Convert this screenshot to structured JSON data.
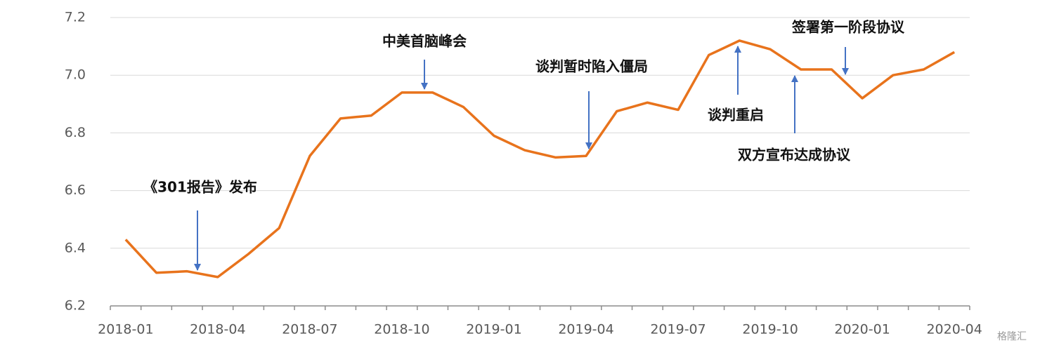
{
  "chart_data": {
    "type": "line",
    "categories": [
      "2018-01",
      null,
      null,
      "2018-04",
      null,
      null,
      "2018-07",
      null,
      null,
      "2018-10",
      null,
      null,
      "2019-01",
      null,
      null,
      "2019-04",
      null,
      null,
      "2019-07",
      null,
      null,
      "2019-10",
      null,
      null,
      "2020-01",
      null,
      null,
      "2020-04"
    ],
    "values": [
      6.43,
      6.315,
      6.32,
      6.3,
      6.38,
      6.47,
      6.72,
      6.85,
      6.86,
      6.94,
      6.94,
      6.89,
      6.79,
      6.74,
      6.715,
      6.72,
      6.875,
      6.905,
      6.88,
      7.07,
      7.12,
      7.09,
      7.02,
      7.02,
      6.92,
      7.0,
      7.02,
      7.08
    ],
    "color": "#e8731c",
    "ylim": [
      6.2,
      7.2
    ],
    "yticks": [
      6.2,
      6.4,
      6.6,
      6.8,
      {
        "value": 7,
        "label": "7.0"
      },
      7.2
    ],
    "grid": true,
    "annotations": [
      "《301报告》发布",
      "中美首脑峰会",
      "谈判暂时陷入僵局",
      "谈判重启",
      "双方宣布达成协议",
      "签署第一阶段协议"
    ],
    "watermark": "格隆汇"
  }
}
